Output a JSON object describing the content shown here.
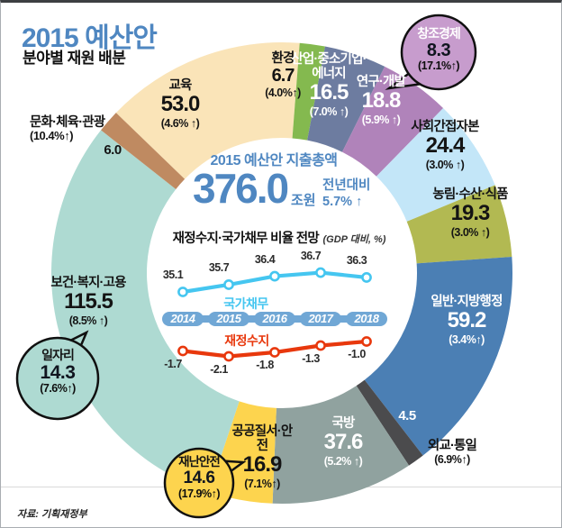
{
  "header": {
    "title_accent": "2015",
    "title": "예산안",
    "subtitle": "분야별 재원 배분"
  },
  "center": {
    "title": "2015 예산안 지출총액",
    "total_value": "376.0",
    "total_unit": "조원",
    "yoy_label": "전년대비",
    "yoy_value": "5.7%",
    "yoy_arrow": "↑",
    "chart_title": "재정수지·국가채무 비율 전망",
    "chart_note": "(GDP 대비, %)"
  },
  "source": "자료: 기획재정부",
  "colors": {
    "accent_blue": "#4f87c1",
    "frame_top": "#3d3f42"
  },
  "chart_data": [
    {
      "type": "pie",
      "title": "분야별 재원 배분",
      "unit": "조원",
      "total_label": "376.0",
      "segments": [
        {
          "name": "교육",
          "value": 53.0,
          "label": "53.0",
          "change": "(4.6% ↑)",
          "color": "#fae4b8"
        },
        {
          "name": "환경",
          "value": 6.7,
          "label": "6.7",
          "change": "(4.0%↑)",
          "color": "#84b94f"
        },
        {
          "name": "산업·중소기업·에너지",
          "value": 16.5,
          "label": "16.5",
          "change": "(7.0% ↑)",
          "color": "#6d7ca0"
        },
        {
          "name": "연구·개발",
          "value": 18.8,
          "label": "18.8",
          "change": "(5.9% ↑)",
          "color": "#b083ba"
        },
        {
          "name": "사회간접자본",
          "value": 24.4,
          "label": "24.4",
          "change": "(3.0% ↑)",
          "color": "#c3e6f8"
        },
        {
          "name": "농림·수산·식품",
          "value": 19.3,
          "label": "19.3",
          "change": "(3.0% ↑)",
          "color": "#b2b952"
        },
        {
          "name": "일반·지방행정",
          "value": 59.2,
          "label": "59.2",
          "change": "(3.4%↑)",
          "color": "#4b7fb4"
        },
        {
          "name": "외교·통일",
          "value": 4.5,
          "label": "4.5",
          "change": "(6.9%↑)",
          "color": "#4b4b4d"
        },
        {
          "name": "국방",
          "value": 37.6,
          "label": "37.6",
          "change": "(5.2% ↑)",
          "color": "#90a29f"
        },
        {
          "name": "공공질서·안전",
          "value": 16.9,
          "label": "16.9",
          "change": "(7.1%↑)",
          "color": "#fdd44e"
        },
        {
          "name": "보건·복지·고용",
          "value": 115.5,
          "label": "115.5",
          "change": "(8.5% ↑)",
          "color": "#aedad2"
        },
        {
          "name": "문화·체육·관광",
          "value": 6.0,
          "label": "6.0",
          "change": "(10.4%↑)",
          "color": "#bf8a61"
        }
      ],
      "callouts": [
        {
          "name": "창조경제",
          "value": 8.3,
          "label": "8.3",
          "change": "(17.1%↑)",
          "color": "#c79ccd"
        },
        {
          "name": "일자리",
          "value": 14.3,
          "label": "14.3",
          "change": "(7.6%↑)",
          "color": "#aedad2"
        },
        {
          "name": "재난안전",
          "value": 14.6,
          "label": "14.6",
          "change": "(17.9%↑)",
          "color": "#fdd44e"
        }
      ]
    },
    {
      "type": "line",
      "title": "재정수지·국가채무 비율 전망",
      "unit": "(GDP 대비, %)",
      "x": [
        "2014",
        "2015",
        "2016",
        "2017",
        "2018"
      ],
      "x_pill_color": "#70a7d5",
      "series": [
        {
          "name": "국가채무",
          "color": "#45c6f0",
          "values": [
            35.1,
            35.7,
            36.4,
            36.7,
            36.3
          ]
        },
        {
          "name": "재정수지",
          "color": "#e8380d",
          "values": [
            -1.7,
            -2.1,
            -1.8,
            -1.3,
            -1.0
          ]
        }
      ]
    }
  ]
}
